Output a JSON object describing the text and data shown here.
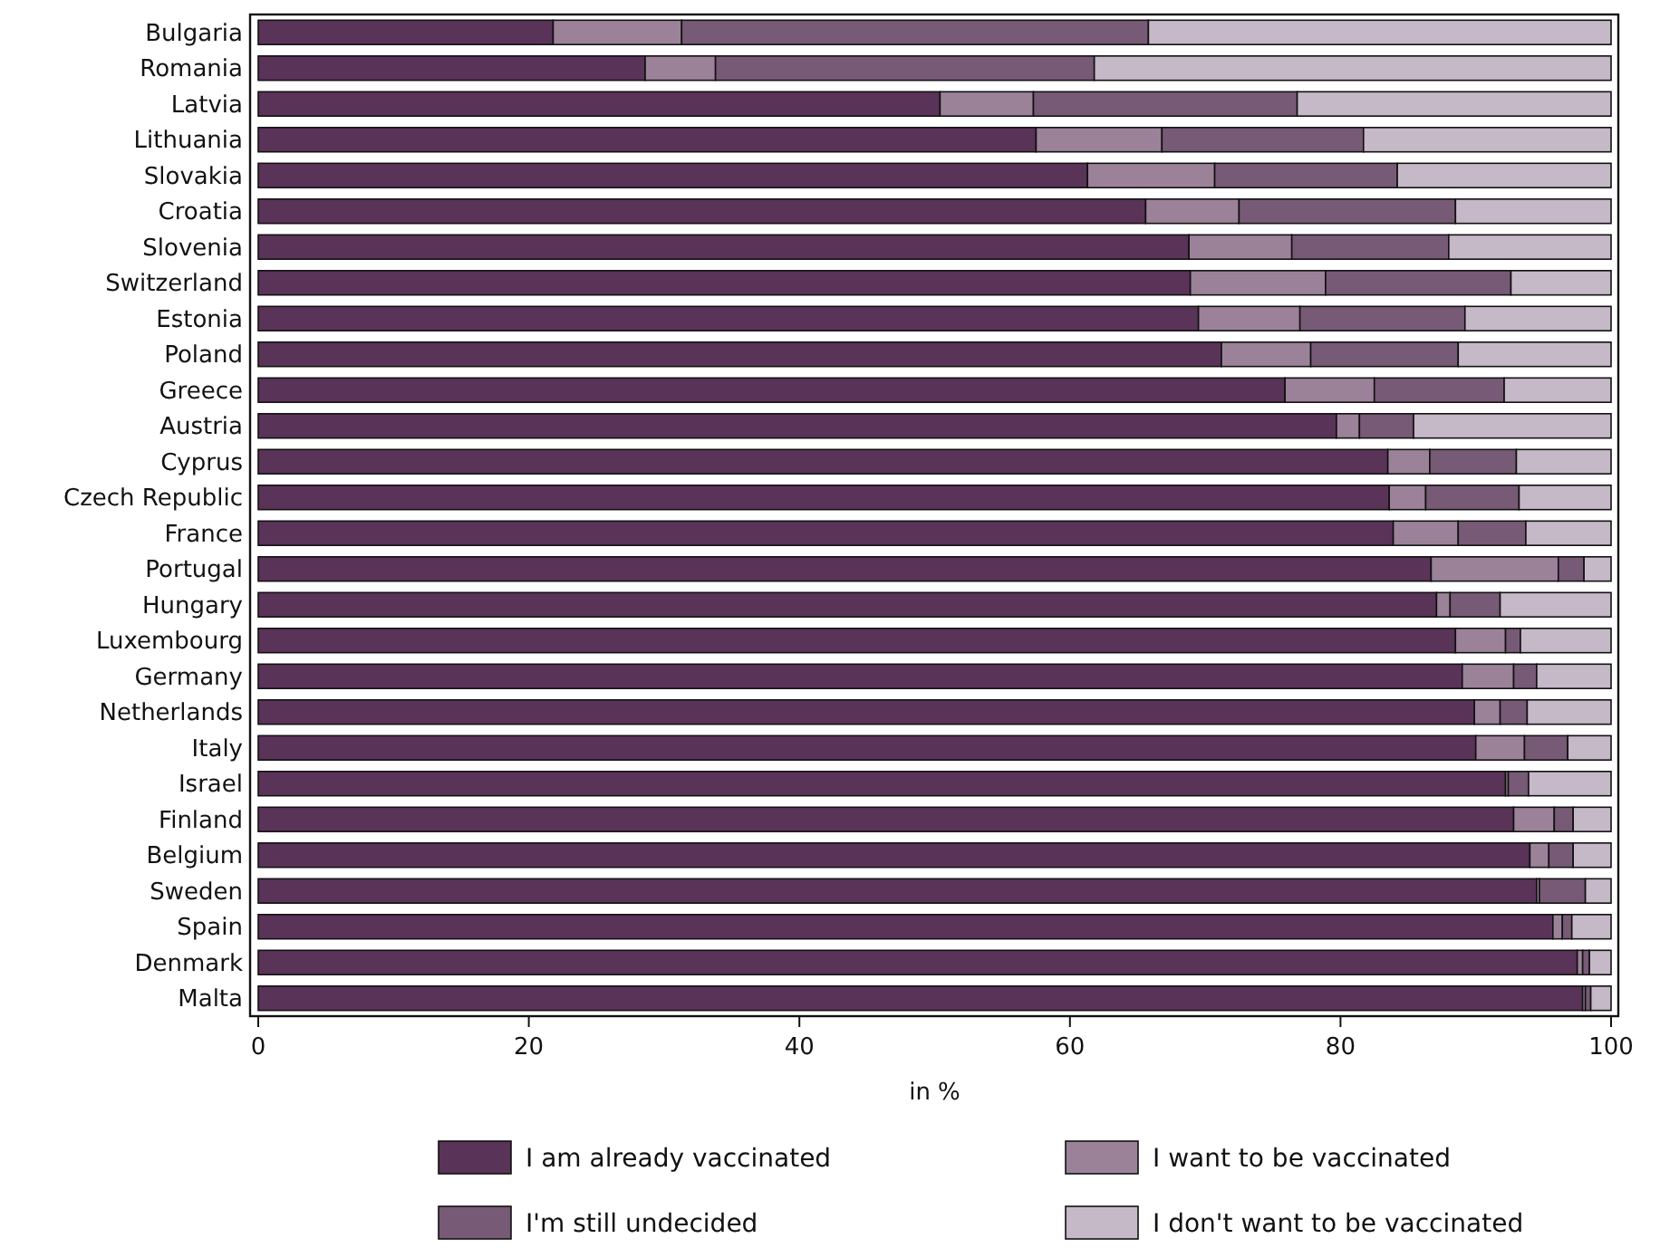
{
  "chart_data": {
    "type": "bar",
    "orientation": "horizontal",
    "stacked": true,
    "xlabel": "in %",
    "xlim": [
      0,
      100
    ],
    "xticks": [
      0,
      20,
      40,
      60,
      80,
      100
    ],
    "grid": false,
    "legend": "bottom",
    "categories": [
      "Bulgaria",
      "Romania",
      "Latvia",
      "Lithuania",
      "Slovakia",
      "Croatia",
      "Slovenia",
      "Switzerland",
      "Estonia",
      "Poland",
      "Greece",
      "Austria",
      "Cyprus",
      "Czech Republic",
      "France",
      "Portugal",
      "Hungary",
      "Luxembourg",
      "Germany",
      "Netherlands",
      "Italy",
      "Israel",
      "Finland",
      "Belgium",
      "Sweden",
      "Spain",
      "Denmark",
      "Malta"
    ],
    "series": [
      {
        "name": "I am already vaccinated",
        "color": "#5a3358",
        "values": [
          21.8,
          28.6,
          50.4,
          57.5,
          61.3,
          65.6,
          68.8,
          68.9,
          69.5,
          71.2,
          75.9,
          79.7,
          83.5,
          83.6,
          83.9,
          86.7,
          87.1,
          88.5,
          89.0,
          89.9,
          90.0,
          92.2,
          92.8,
          94.0,
          94.5,
          95.7,
          97.5,
          97.9
        ]
      },
      {
        "name": "I want to be vaccinated",
        "color": "#9b8299",
        "values": [
          9.5,
          5.2,
          6.9,
          9.3,
          9.4,
          6.9,
          7.6,
          10.0,
          7.5,
          6.6,
          6.6,
          1.7,
          3.1,
          2.7,
          4.8,
          9.4,
          1.0,
          3.7,
          3.8,
          1.9,
          3.6,
          0.2,
          3.0,
          1.4,
          0.2,
          0.7,
          0.4,
          0.2
        ]
      },
      {
        "name": "I'm still undecided",
        "color": "#775a76",
        "values": [
          34.5,
          28.0,
          19.5,
          14.9,
          13.5,
          16.0,
          11.6,
          13.7,
          12.2,
          10.9,
          9.6,
          4.0,
          6.4,
          6.9,
          5.0,
          1.9,
          3.7,
          1.1,
          1.7,
          2.0,
          3.2,
          1.5,
          1.4,
          1.8,
          3.4,
          0.7,
          0.5,
          0.4
        ]
      },
      {
        "name": "I don't want to be vaccinated",
        "color": "#c5b8c7",
        "values": [
          34.2,
          38.2,
          23.2,
          18.3,
          15.8,
          11.5,
          12.0,
          7.4,
          10.8,
          11.3,
          7.9,
          14.6,
          7.0,
          6.8,
          6.3,
          2.0,
          8.2,
          6.7,
          5.5,
          6.2,
          3.2,
          6.1,
          2.8,
          2.8,
          1.9,
          2.9,
          1.6,
          1.5
        ]
      }
    ]
  }
}
